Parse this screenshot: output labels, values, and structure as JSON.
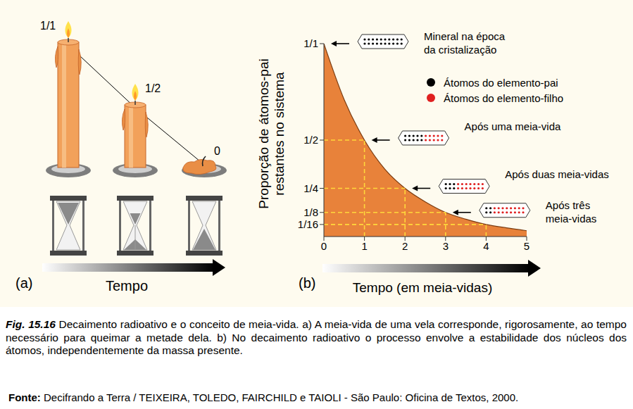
{
  "chart_data": {
    "type": "area",
    "panel": "(b)",
    "x": [
      0,
      0.5,
      1,
      1.5,
      2,
      2.5,
      3,
      3.5,
      4,
      4.5,
      5
    ],
    "values": [
      1,
      0.71,
      0.5,
      0.35,
      0.25,
      0.18,
      0.125,
      0.09,
      0.0625,
      0.045,
      0.03
    ],
    "color": "#e8823a",
    "xlim": [
      0,
      5
    ],
    "xticks": [
      0,
      1,
      2,
      3,
      4,
      5
    ],
    "ylim": [
      0,
      1
    ],
    "yticks": [
      {
        "value": 1,
        "label": "1/1"
      },
      {
        "value": 0.5,
        "label": "1/2"
      },
      {
        "value": 0.25,
        "label": "1/4"
      },
      {
        "value": 0.125,
        "label": "1/8"
      },
      {
        "value": 0.0625,
        "label": "1/16"
      }
    ],
    "x_label": "Tempo (em meia-vidas)",
    "y_label": [
      "Proporção de átomos-pai",
      "restantes no sistema"
    ],
    "guides": [
      {
        "x": 1,
        "y": 0.5
      },
      {
        "x": 2,
        "y": 0.25
      },
      {
        "x": 3,
        "y": 0.125
      },
      {
        "x": 4,
        "y": 0.0625
      }
    ],
    "annotations": [
      {
        "x": 0,
        "y": 1,
        "lines": [
          "Mineral na época",
          "da cristalização"
        ]
      },
      {
        "x": 1,
        "y": 0.5,
        "lines": [
          "Após uma meia-vida"
        ]
      },
      {
        "x": 2,
        "y": 0.25,
        "lines": [
          "Após duas meia-vidas"
        ]
      },
      {
        "x": 3,
        "y": 0.125,
        "lines": [
          "Após três",
          "meia-vidas"
        ]
      }
    ],
    "legend_items": [
      {
        "name": "Átomos do elemento-pai",
        "color": "#000000"
      },
      {
        "name": "Átomos do elemento-filho",
        "color": "#e02020"
      }
    ]
  },
  "panel_a": {
    "label": "(a)",
    "axis_label": "Tempo",
    "candles": [
      {
        "label": "1/1",
        "fraction": 1
      },
      {
        "label": "1/2",
        "fraction": 0.5
      },
      {
        "label": "0",
        "fraction": 0
      }
    ]
  },
  "caption": {
    "figure": "Fig. 15.16",
    "text": "Decaimento radioativo e o conceito de meia-vida. a) A meia-vida de uma vela corresponde, rigorosamente, ao tempo necessário para queimar a metade dela. b) No decaimento radioativo o processo envolve a estabilidade dos núcleos dos átomos, independentemente da massa presente."
  },
  "source": {
    "label": "Fonte:",
    "text": "Decifrando a Terra / TEIXEIRA, TOLEDO, FAIRCHILD e TAIOLI - São Paulo: Oficina de Textos, 2000."
  }
}
